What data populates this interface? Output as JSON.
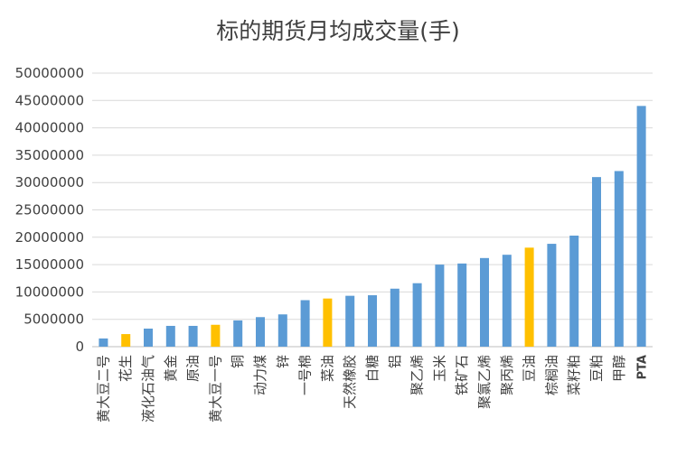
{
  "chart_data": {
    "type": "bar",
    "title": "标的期货月均成交量(手)",
    "xlabel": "",
    "ylabel": "",
    "ylim": [
      0,
      50000000
    ],
    "yticks": [
      0,
      5000000,
      10000000,
      15000000,
      20000000,
      25000000,
      30000000,
      35000000,
      40000000,
      45000000,
      50000000
    ],
    "grid": true,
    "legend": "none",
    "colors": {
      "default": "#5b9bd5",
      "highlight": "#ffc000",
      "text": "#404040",
      "grid": "#d9d9d9"
    },
    "categories": [
      "黄大豆二号",
      "花生",
      "液化石油气",
      "黄金",
      "原油",
      "黄大豆一号",
      "铜",
      "动力煤",
      "锌",
      "一号棉",
      "菜油",
      "天然橡胶",
      "白糖",
      "铝",
      "聚乙烯",
      "玉米",
      "铁矿石",
      "聚氯乙烯",
      "聚丙烯",
      "豆油",
      "棕榈油",
      "菜籽粕",
      "豆粕",
      "甲醇",
      "PTA"
    ],
    "values": [
      1500000,
      2300000,
      3300000,
      3800000,
      3800000,
      4000000,
      4800000,
      5400000,
      5900000,
      8500000,
      8800000,
      9300000,
      9400000,
      10600000,
      11600000,
      15000000,
      15200000,
      16200000,
      16800000,
      18100000,
      18800000,
      20300000,
      31000000,
      32100000,
      44000000
    ],
    "highlighted": [
      "花生",
      "黄大豆一号",
      "菜油",
      "豆油"
    ]
  }
}
